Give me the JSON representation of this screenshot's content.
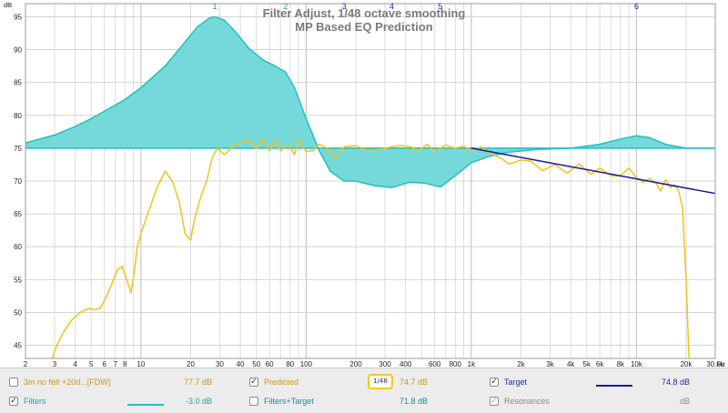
{
  "chart_data": {
    "type": "line",
    "title": "Filter Adjust, 1/48 octave smoothing",
    "subtitle": "MP Based EQ Prediction",
    "y_unit": "dB",
    "x_unit": "Hz",
    "x_scale": "log",
    "xlim": [
      2,
      30000
    ],
    "ylim": [
      43,
      97
    ],
    "grid": true,
    "y_ticks": [
      45,
      50,
      55,
      60,
      65,
      70,
      75,
      80,
      85,
      90,
      95
    ],
    "x_ticks": [
      {
        "v": 2,
        "l": "2"
      },
      {
        "v": 3,
        "l": "3"
      },
      {
        "v": 4,
        "l": "4"
      },
      {
        "v": 5,
        "l": "5"
      },
      {
        "v": 6,
        "l": "6"
      },
      {
        "v": 7,
        "l": "7"
      },
      {
        "v": 8,
        "l": "8"
      },
      {
        "v": 10,
        "l": "10"
      },
      {
        "v": 20,
        "l": "20"
      },
      {
        "v": 30,
        "l": "30"
      },
      {
        "v": 40,
        "l": "40"
      },
      {
        "v": 50,
        "l": "50"
      },
      {
        "v": 60,
        "l": "60"
      },
      {
        "v": 80,
        "l": "80"
      },
      {
        "v": 100,
        "l": "100"
      },
      {
        "v": 200,
        "l": "200"
      },
      {
        "v": 300,
        "l": "300"
      },
      {
        "v": 400,
        "l": "400"
      },
      {
        "v": 600,
        "l": "600"
      },
      {
        "v": 800,
        "l": "800"
      },
      {
        "v": 1000,
        "l": "1k"
      },
      {
        "v": 2000,
        "l": "2k"
      },
      {
        "v": 3000,
        "l": "3k"
      },
      {
        "v": 4000,
        "l": "4k"
      },
      {
        "v": 5000,
        "l": "5k"
      },
      {
        "v": 6000,
        "l": "6k"
      },
      {
        "v": 8000,
        "l": "8k"
      },
      {
        "v": 10000,
        "l": "10k"
      },
      {
        "v": 20000,
        "l": "20k"
      },
      {
        "v": 30000,
        "l": "30.0k"
      }
    ],
    "filter_markers": [
      {
        "label": "1",
        "x": 28,
        "color": "#2aa52a"
      },
      {
        "label": "2",
        "x": 75,
        "color": "#2aa52a"
      },
      {
        "label": "3",
        "x": 170,
        "color": "#2222cc"
      },
      {
        "label": "4",
        "x": 330,
        "color": "#2222cc"
      },
      {
        "label": "5",
        "x": 650,
        "color": "#2222cc"
      },
      {
        "label": "6",
        "x": 10000,
        "color": "#2222cc"
      }
    ],
    "reference_level": 75,
    "series": [
      {
        "name": "Filters+Target",
        "color": "#20c0c0",
        "fill": true,
        "x": [
          2,
          3,
          4,
          5,
          6,
          8,
          10,
          14,
          18,
          22,
          26,
          28,
          32,
          38,
          45,
          55,
          65,
          75,
          85,
          100,
          120,
          140,
          170,
          200,
          260,
          330,
          420,
          520,
          650,
          800,
          1000,
          1300,
          1700,
          2500,
          4000,
          6000,
          8000,
          10000,
          12000,
          15000,
          20000,
          30000
        ],
        "y": [
          75.8,
          77,
          78.3,
          79.5,
          80.6,
          82.4,
          84.2,
          87.5,
          90.8,
          93.5,
          94.8,
          95,
          94.5,
          92.5,
          90.2,
          88.4,
          87.5,
          86.6,
          84.2,
          79.5,
          74.6,
          71.5,
          70,
          70,
          69.3,
          69,
          69.8,
          69.7,
          69.1,
          70.8,
          72.8,
          73.8,
          74.4,
          74.8,
          75,
          75.6,
          76.4,
          76.9,
          76.6,
          75.6,
          75,
          75
        ]
      },
      {
        "name": "Predicted",
        "color": "#f0c419",
        "fill": false,
        "x": [
          2.9,
          3.1,
          3.4,
          3.8,
          4.3,
          4.8,
          5.3,
          5.7,
          6.2,
          6.7,
          7.2,
          7.7,
          8.2,
          8.7,
          9.1,
          9.5,
          10,
          11,
          12.5,
          14,
          15.5,
          17,
          18.5,
          20,
          21,
          23,
          25,
          27,
          29,
          32,
          36,
          40,
          45,
          50,
          55,
          60,
          65,
          70,
          75,
          80,
          85,
          90,
          100,
          110,
          120,
          135,
          150,
          170,
          200,
          240,
          280,
          330,
          380,
          430,
          480,
          540,
          600,
          700,
          800,
          900,
          1000,
          1150,
          1300,
          1500,
          1700,
          2000,
          2300,
          2700,
          3200,
          3800,
          4500,
          5300,
          6000,
          7000,
          8000,
          9000,
          10000,
          11000,
          12000,
          13000,
          14000,
          15000,
          16000,
          17000,
          18000,
          19000,
          20000,
          20800
        ],
        "y": [
          43,
          45,
          47,
          48.8,
          50,
          50.6,
          50.4,
          50.7,
          52.5,
          54.5,
          56.5,
          57,
          55,
          53,
          56,
          60,
          62,
          65,
          69,
          71.5,
          70,
          67,
          62,
          61,
          64,
          67.5,
          70,
          73.5,
          75,
          74,
          75.2,
          76,
          76.2,
          75,
          76.4,
          74.6,
          76.2,
          74.6,
          75.3,
          75.2,
          74,
          76.2,
          74.5,
          74.6,
          75.6,
          75,
          73.6,
          75.2,
          75.4,
          74.5,
          74.8,
          75.2,
          75.4,
          75.2,
          74.6,
          75.6,
          74.5,
          75.5,
          75,
          75.3,
          74.6,
          75.2,
          74.2,
          73.5,
          72.6,
          73.2,
          73,
          71.6,
          72.5,
          71.2,
          72.6,
          71,
          72,
          70.8,
          70.8,
          72,
          70.5,
          69.8,
          70.4,
          69.8,
          68.5,
          70.2,
          69,
          69.4,
          68.5,
          66,
          55,
          43
        ]
      },
      {
        "name": "Target",
        "color": "#1a1aa6",
        "fill": false,
        "x": [
          1000,
          30000
        ],
        "y": [
          75,
          68.1
        ]
      }
    ]
  },
  "legend": {
    "row1": {
      "item1": {
        "checked": false,
        "label": "3m no felt +20d...[FDW]",
        "value": "77.7 dB",
        "color": "#c39a1f"
      },
      "item2": {
        "checked": true,
        "label": "Predicted",
        "value": "74.7 dB",
        "color": "#c39a1f",
        "swatch_color": "#f2c91b",
        "smoothing": "1/48"
      },
      "item3": {
        "checked": true,
        "label": "Target",
        "value": "74.8 dB",
        "color": "#1e2aa0",
        "swatch_color": "#1a1aa6"
      }
    },
    "row2": {
      "item1": {
        "checked": true,
        "label": "Filters",
        "value": "-3.0 dB",
        "color": "#1ea5a5",
        "swatch_color": "#20c0c0"
      },
      "item2": {
        "checked": false,
        "label": "Filters+Target",
        "value": "71.8 dB",
        "color": "#1e8a8a"
      },
      "item3": {
        "checked": true,
        "label": "Resonances",
        "value": "dB",
        "color": "#8a8a8a"
      }
    }
  }
}
